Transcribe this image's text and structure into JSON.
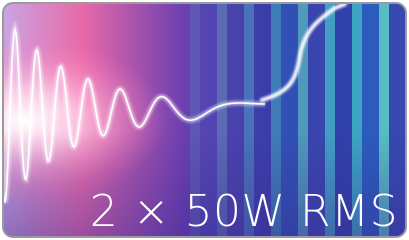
{
  "caption": "2 × 50W RMS"
}
